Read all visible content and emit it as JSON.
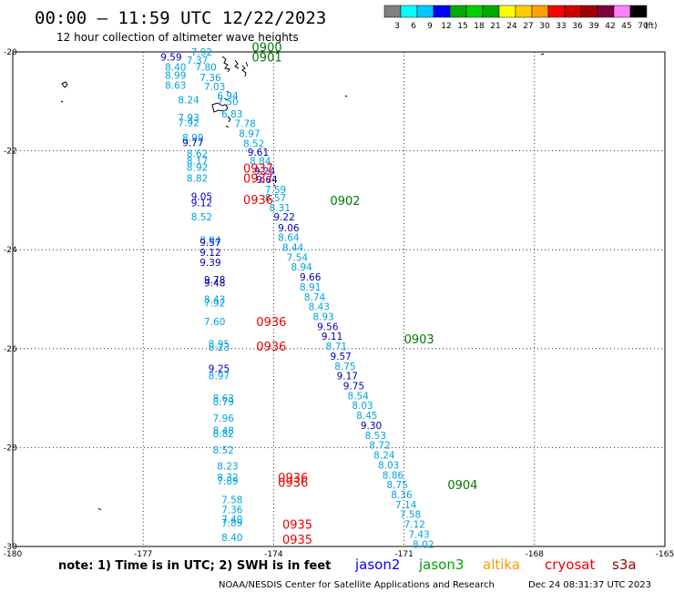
{
  "chart_data": {
    "type": "scatter",
    "title": "00:00 — 11:59 UTC 12/22/2023",
    "subtitle": "12 hour collection of altimeter wave heights",
    "xlim": [
      -180,
      -165
    ],
    "ylim": [
      -30,
      -20
    ],
    "x_ticks": [
      "-180",
      "-177",
      "-174",
      "-171",
      "-168",
      "-165"
    ],
    "y_ticks": [
      "-20",
      "-22",
      "-24",
      "-26",
      "-28",
      "-30"
    ],
    "grid": true,
    "colorbar": {
      "values": [
        "3",
        "6",
        "9",
        "12",
        "15",
        "18",
        "21",
        "24",
        "27",
        "30",
        "33",
        "36",
        "39",
        "42",
        "45",
        "70"
      ],
      "unit": "(ft)",
      "colors": [
        "#808080",
        "#00ffff",
        "#00c8ff",
        "#0000ff",
        "#00aa00",
        "#00d000",
        "#00aa00",
        "#ffff00",
        "#ffcc00",
        "#ffa000",
        "#ff0000",
        "#d00000",
        "#a00000",
        "#800040",
        "#ff80ff",
        "#000000"
      ]
    },
    "colors": {
      "light": "#00a2e0",
      "dark": "#0000bb",
      "time_green": "#007a00",
      "time_red": "#ee0000"
    },
    "series": [
      {
        "name": "west-track",
        "points": [
          {
            "x": -175.9,
            "y": -20.0,
            "v": "7.92",
            "c": "light"
          },
          {
            "x": -176.6,
            "y": -20.1,
            "v": "9.59",
            "c": "dark"
          },
          {
            "x": -176.0,
            "y": -20.17,
            "v": "7.37",
            "c": "light"
          },
          {
            "x": -176.5,
            "y": -20.3,
            "v": "8.40",
            "c": "light"
          },
          {
            "x": -175.8,
            "y": -20.3,
            "v": "7.80",
            "c": "light"
          },
          {
            "x": -176.5,
            "y": -20.47,
            "v": "8.99",
            "c": "light"
          },
          {
            "x": -175.7,
            "y": -20.52,
            "v": "7.36",
            "c": "light"
          },
          {
            "x": -176.5,
            "y": -20.67,
            "v": "8.63",
            "c": "light"
          },
          {
            "x": -175.6,
            "y": -20.7,
            "v": "7.03",
            "c": "light"
          },
          {
            "x": -175.3,
            "y": -20.88,
            "v": "6.94",
            "c": "light"
          },
          {
            "x": -176.2,
            "y": -20.97,
            "v": "8.24",
            "c": "light"
          },
          {
            "x": -175.3,
            "y": -21.0,
            "v": "7.50",
            "c": "light"
          },
          {
            "x": -175.2,
            "y": -21.25,
            "v": "6.83",
            "c": "light"
          },
          {
            "x": -176.2,
            "y": -21.33,
            "v": "7.93",
            "c": "light"
          },
          {
            "x": -176.2,
            "y": -21.43,
            "v": "7.92",
            "c": "light"
          },
          {
            "x": -174.9,
            "y": -21.45,
            "v": "7.78",
            "c": "light"
          },
          {
            "x": -174.8,
            "y": -21.65,
            "v": "8.97",
            "c": "light"
          },
          {
            "x": -176.1,
            "y": -21.73,
            "v": "8.99",
            "c": "light"
          },
          {
            "x": -176.1,
            "y": -21.83,
            "v": "9.77",
            "c": "dark"
          },
          {
            "x": -174.7,
            "y": -21.85,
            "v": "8.52",
            "c": "light"
          },
          {
            "x": -174.6,
            "y": -22.03,
            "v": "9.61",
            "c": "dark"
          },
          {
            "x": -176.0,
            "y": -22.05,
            "v": "8.62",
            "c": "light"
          },
          {
            "x": -176.0,
            "y": -22.2,
            "v": "8.17",
            "c": "light"
          },
          {
            "x": -174.55,
            "y": -22.2,
            "v": "8.84",
            "c": "light"
          },
          {
            "x": -176.0,
            "y": -22.33,
            "v": "8.92",
            "c": "light"
          },
          {
            "x": -174.45,
            "y": -22.4,
            "v": "9.24",
            "c": "dark"
          },
          {
            "x": -176.0,
            "y": -22.55,
            "v": "8.82",
            "c": "light"
          },
          {
            "x": -174.4,
            "y": -22.58,
            "v": "9.64",
            "c": "dark"
          },
          {
            "x": -174.2,
            "y": -22.78,
            "v": "7.59",
            "c": "light"
          },
          {
            "x": -175.9,
            "y": -22.92,
            "v": "9.05",
            "c": "dark"
          },
          {
            "x": -174.2,
            "y": -22.95,
            "v": "8.57",
            "c": "light"
          },
          {
            "x": -175.9,
            "y": -23.05,
            "v": "9.12",
            "c": "dark"
          },
          {
            "x": -174.1,
            "y": -23.15,
            "v": "8.31",
            "c": "light"
          },
          {
            "x": -175.9,
            "y": -23.33,
            "v": "8.52",
            "c": "light"
          },
          {
            "x": -174.0,
            "y": -23.33,
            "v": "9.22",
            "c": "dark"
          },
          {
            "x": -173.9,
            "y": -23.55,
            "v": "9.06",
            "c": "dark"
          },
          {
            "x": -173.9,
            "y": -23.75,
            "v": "8.64",
            "c": "light"
          },
          {
            "x": -175.7,
            "y": -23.8,
            "v": "8.94",
            "c": "light"
          },
          {
            "x": -175.7,
            "y": -23.85,
            "v": "9.57",
            "c": "dark"
          },
          {
            "x": -173.8,
            "y": -23.95,
            "v": "8.44",
            "c": "light"
          },
          {
            "x": -175.7,
            "y": -24.05,
            "v": "9.12",
            "c": "dark"
          },
          {
            "x": -173.7,
            "y": -24.15,
            "v": "7.54",
            "c": "light"
          },
          {
            "x": -175.7,
            "y": -24.25,
            "v": "9.39",
            "c": "dark"
          },
          {
            "x": -173.6,
            "y": -24.35,
            "v": "8.94",
            "c": "light"
          },
          {
            "x": -173.4,
            "y": -24.55,
            "v": "9.66",
            "c": "dark"
          },
          {
            "x": -175.6,
            "y": -24.6,
            "v": "9.78",
            "c": "dark"
          },
          {
            "x": -175.6,
            "y": -24.67,
            "v": "9.48",
            "c": "dark"
          },
          {
            "x": -173.4,
            "y": -24.75,
            "v": "8.91",
            "c": "light"
          },
          {
            "x": -173.3,
            "y": -24.95,
            "v": "8.74",
            "c": "light"
          },
          {
            "x": -175.6,
            "y": -25.0,
            "v": "8.43",
            "c": "light"
          },
          {
            "x": -175.6,
            "y": -25.07,
            "v": "7.92",
            "c": "light"
          },
          {
            "x": -173.2,
            "y": -25.15,
            "v": "8.43",
            "c": "light"
          },
          {
            "x": -173.1,
            "y": -25.35,
            "v": "8.93",
            "c": "light"
          },
          {
            "x": -175.6,
            "y": -25.45,
            "v": "7.60",
            "c": "light"
          },
          {
            "x": -173.0,
            "y": -25.55,
            "v": "9.56",
            "c": "dark"
          },
          {
            "x": -172.9,
            "y": -25.75,
            "v": "9.11",
            "c": "dark"
          },
          {
            "x": -175.5,
            "y": -25.9,
            "v": "8.95",
            "c": "light"
          },
          {
            "x": -175.5,
            "y": -25.97,
            "v": "8.23",
            "c": "light"
          },
          {
            "x": -172.8,
            "y": -25.95,
            "v": "8.71",
            "c": "light"
          },
          {
            "x": -172.7,
            "y": -26.15,
            "v": "9.57",
            "c": "dark"
          },
          {
            "x": -175.5,
            "y": -26.4,
            "v": "9.25",
            "c": "dark"
          },
          {
            "x": -172.6,
            "y": -26.35,
            "v": "8.75",
            "c": "light"
          },
          {
            "x": -175.5,
            "y": -26.55,
            "v": "8.97",
            "c": "light"
          },
          {
            "x": -172.55,
            "y": -26.55,
            "v": "9.17",
            "c": "dark"
          },
          {
            "x": -172.4,
            "y": -26.75,
            "v": "9.75",
            "c": "dark"
          },
          {
            "x": -172.3,
            "y": -26.95,
            "v": "8.54",
            "c": "light"
          },
          {
            "x": -175.4,
            "y": -27.0,
            "v": "8.63",
            "c": "light"
          },
          {
            "x": -175.4,
            "y": -27.07,
            "v": "8.79",
            "c": "light"
          },
          {
            "x": -172.2,
            "y": -27.15,
            "v": "8.03",
            "c": "light"
          },
          {
            "x": -175.4,
            "y": -27.4,
            "v": "7.96",
            "c": "light"
          },
          {
            "x": -172.1,
            "y": -27.35,
            "v": "8.45",
            "c": "light"
          },
          {
            "x": -172.0,
            "y": -27.55,
            "v": "9.30",
            "c": "dark"
          },
          {
            "x": -175.4,
            "y": -27.65,
            "v": "8.48",
            "c": "light"
          },
          {
            "x": -175.4,
            "y": -27.72,
            "v": "8.82",
            "c": "light"
          },
          {
            "x": -171.9,
            "y": -27.75,
            "v": "8.53",
            "c": "light"
          },
          {
            "x": -171.8,
            "y": -27.95,
            "v": "8.72",
            "c": "light"
          },
          {
            "x": -175.4,
            "y": -28.05,
            "v": "8.52",
            "c": "light"
          },
          {
            "x": -171.7,
            "y": -28.15,
            "v": "8.24",
            "c": "light"
          },
          {
            "x": -171.6,
            "y": -28.35,
            "v": "8.03",
            "c": "light"
          },
          {
            "x": -175.3,
            "y": -28.37,
            "v": "8.23",
            "c": "light"
          },
          {
            "x": -171.5,
            "y": -28.55,
            "v": "8.86",
            "c": "light"
          },
          {
            "x": -175.3,
            "y": -28.6,
            "v": "8.32",
            "c": "light"
          },
          {
            "x": -175.3,
            "y": -28.67,
            "v": "7.89",
            "c": "light"
          },
          {
            "x": -171.4,
            "y": -28.75,
            "v": "8.75",
            "c": "light"
          },
          {
            "x": -171.3,
            "y": -28.95,
            "v": "8.36",
            "c": "light"
          },
          {
            "x": -175.2,
            "y": -29.05,
            "v": "7.58",
            "c": "light"
          },
          {
            "x": -171.2,
            "y": -29.15,
            "v": "7.14",
            "c": "light"
          },
          {
            "x": -175.2,
            "y": -29.25,
            "v": "7.36",
            "c": "light"
          },
          {
            "x": -171.1,
            "y": -29.35,
            "v": "7.58",
            "c": "light"
          },
          {
            "x": -175.2,
            "y": -29.45,
            "v": "7.40",
            "c": "light"
          },
          {
            "x": -175.2,
            "y": -29.52,
            "v": "7.89",
            "c": "light"
          },
          {
            "x": -171.0,
            "y": -29.55,
            "v": "7.12",
            "c": "light"
          },
          {
            "x": -170.9,
            "y": -29.75,
            "v": "7.43",
            "c": "light"
          },
          {
            "x": -175.2,
            "y": -29.82,
            "v": "8.40",
            "c": "light"
          },
          {
            "x": -170.8,
            "y": -29.95,
            "v": "8.02",
            "c": "light"
          }
        ]
      }
    ],
    "time_labels": [
      {
        "x": -174.5,
        "y": -19.9,
        "v": "0900",
        "c": "time_green"
      },
      {
        "x": -174.5,
        "y": -20.1,
        "v": "0901",
        "c": "time_green"
      },
      {
        "x": -174.7,
        "y": -22.35,
        "v": "0937",
        "c": "time_red"
      },
      {
        "x": -174.7,
        "y": -22.55,
        "v": "0937",
        "c": "time_red"
      },
      {
        "x": -174.7,
        "y": -22.98,
        "v": "0936",
        "c": "time_red"
      },
      {
        "x": -172.7,
        "y": -23.0,
        "v": "0902",
        "c": "time_green"
      },
      {
        "x": -174.4,
        "y": -25.45,
        "v": "0936",
        "c": "time_red"
      },
      {
        "x": -174.4,
        "y": -25.95,
        "v": "0936",
        "c": "time_red"
      },
      {
        "x": -171.0,
        "y": -25.8,
        "v": "0903",
        "c": "time_green"
      },
      {
        "x": -173.9,
        "y": -28.6,
        "v": "0936",
        "c": "time_red"
      },
      {
        "x": -173.9,
        "y": -28.7,
        "v": "0936",
        "c": "time_red"
      },
      {
        "x": -170.0,
        "y": -28.75,
        "v": "0904",
        "c": "time_green"
      },
      {
        "x": -173.8,
        "y": -29.55,
        "v": "0935",
        "c": "time_red"
      },
      {
        "x": -173.8,
        "y": -29.85,
        "v": "0935",
        "c": "time_red"
      }
    ]
  },
  "footer": {
    "note": "note:  1) Time is in UTC; 2) SWH is in feet",
    "legend": [
      {
        "label": "jason2",
        "color": "#0000ff"
      },
      {
        "label": "jason3",
        "color": "#00a000"
      },
      {
        "label": "altika",
        "color": "#ff9900"
      },
      {
        "label": "cryosat",
        "color": "#ee0000"
      },
      {
        "label": "s3a",
        "color": "#990000"
      }
    ],
    "credit": "NOAA/NESDIS Center for Satellite Applications and Research",
    "timestamp": "Dec 24 08:31:37 UTC 2023"
  }
}
